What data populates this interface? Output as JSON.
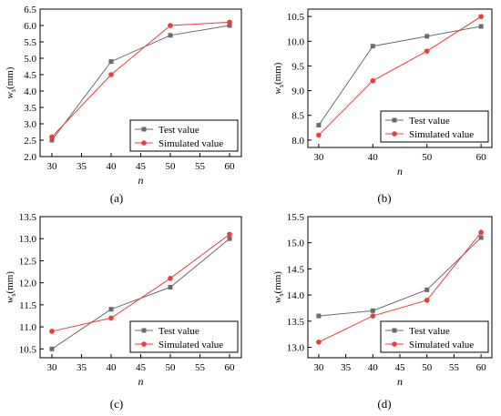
{
  "colors": {
    "test": "#6b6b6b",
    "sim": "#ef3b3b",
    "axis": "#000000"
  },
  "chart_data": [
    {
      "type": "line",
      "panel_label": "(a)",
      "xlabel": "n",
      "ylabel_main": "w",
      "ylabel_sub": "s",
      "ylabel_unit": "(mm)",
      "x": [
        30,
        40,
        50,
        60
      ],
      "xticks": [
        "30",
        "35",
        "40",
        "45",
        "50",
        "55",
        "60"
      ],
      "xlim": [
        28,
        62
      ],
      "yticks": [
        "2.0",
        "2.5",
        "3.0",
        "3.5",
        "4.0",
        "4.5",
        "5.0",
        "5.5",
        "6.0",
        "6.5"
      ],
      "ylim": [
        2.0,
        6.5
      ],
      "legend_position": "bottom-right",
      "grid": false,
      "series": [
        {
          "name": "Test value",
          "values": [
            2.5,
            4.9,
            5.7,
            6.0
          ]
        },
        {
          "name": "Simulated value",
          "values": [
            2.6,
            4.5,
            6.0,
            6.1
          ]
        }
      ]
    },
    {
      "type": "line",
      "panel_label": "(b)",
      "xlabel": "n",
      "ylabel_main": "w",
      "ylabel_sub": "s",
      "ylabel_unit": "(mm)",
      "x": [
        30,
        40,
        50,
        60
      ],
      "xticks": [
        "30",
        "40",
        "50",
        "60"
      ],
      "xlim": [
        28,
        62
      ],
      "yticks": [
        "8.0",
        "8.5",
        "9.0",
        "9.5",
        "10.0",
        "10.5"
      ],
      "ylim": [
        7.85,
        10.65
      ],
      "legend_position": "bottom-right",
      "grid": false,
      "series": [
        {
          "name": "Test value",
          "values": [
            8.3,
            9.9,
            10.1,
            10.3
          ]
        },
        {
          "name": "Simulated value",
          "values": [
            8.1,
            9.2,
            9.8,
            10.5
          ]
        }
      ]
    },
    {
      "type": "line",
      "panel_label": "(c)",
      "xlabel": "n",
      "ylabel_main": "w",
      "ylabel_sub": "s",
      "ylabel_unit": "(mm)",
      "x": [
        30,
        40,
        50,
        60
      ],
      "xticks": [
        "30",
        "35",
        "40",
        "45",
        "50",
        "55",
        "60"
      ],
      "xlim": [
        28,
        62
      ],
      "yticks": [
        "10.5",
        "11.0",
        "11.5",
        "12.0",
        "12.5",
        "13.0",
        "13.5"
      ],
      "ylim": [
        10.3,
        13.5
      ],
      "legend_position": "bottom-right",
      "grid": false,
      "series": [
        {
          "name": "Test value",
          "values": [
            10.5,
            11.4,
            11.9,
            13.0
          ]
        },
        {
          "name": "Simulated value",
          "values": [
            10.9,
            11.2,
            12.1,
            13.1
          ]
        }
      ]
    },
    {
      "type": "line",
      "panel_label": "(d)",
      "xlabel": "n",
      "ylabel_main": "w",
      "ylabel_sub": "s",
      "ylabel_unit": "(mm)",
      "x": [
        30,
        40,
        50,
        60
      ],
      "xticks": [
        "30",
        "35",
        "40",
        "45",
        "50",
        "55",
        "60"
      ],
      "xlim": [
        28,
        62
      ],
      "yticks": [
        "13.0",
        "13.5",
        "14.0",
        "14.5",
        "15.0",
        "15.5"
      ],
      "ylim": [
        12.8,
        15.5
      ],
      "legend_position": "bottom-right",
      "grid": false,
      "series": [
        {
          "name": "Test value",
          "values": [
            13.6,
            13.7,
            14.1,
            15.1
          ]
        },
        {
          "name": "Simulated value",
          "values": [
            13.1,
            13.6,
            13.9,
            15.2
          ]
        }
      ]
    }
  ]
}
